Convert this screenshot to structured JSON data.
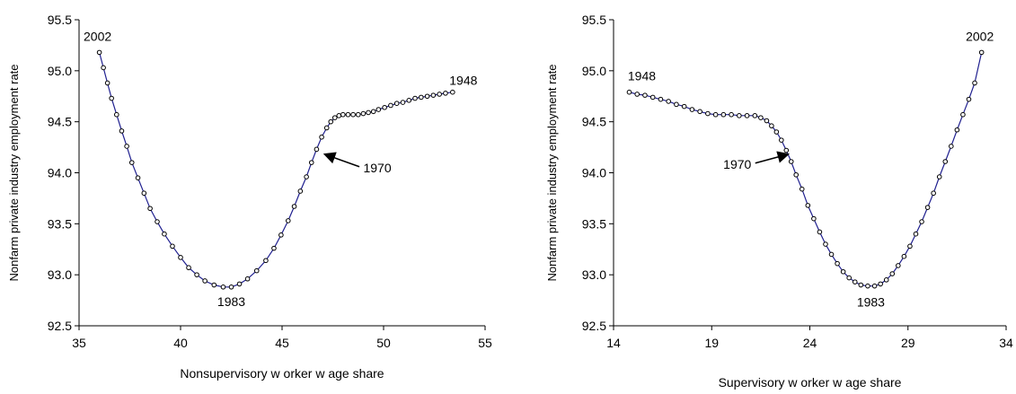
{
  "colors": {
    "line": "#1f1f8f",
    "marker_fill": "#ffffff",
    "marker_stroke": "#000000",
    "axis": "#000000",
    "background": "#ffffff"
  },
  "chart_data": [
    {
      "type": "line",
      "title": "",
      "xlabel": "Nonsupervisory w orker w age share",
      "ylabel": "Nonfarm private industry employment rate",
      "xlim": [
        35,
        55
      ],
      "ylim": [
        92.5,
        95.5
      ],
      "x_ticks": [
        35,
        40,
        45,
        50,
        55
      ],
      "x_tick_labels": [
        "35",
        "40",
        "45",
        "50",
        "55"
      ],
      "y_ticks": [
        92.5,
        93.0,
        93.5,
        94.0,
        94.5,
        95.0,
        95.5
      ],
      "y_tick_labels": [
        "92.5",
        "93.0",
        "93.5",
        "94.0",
        "94.5",
        "95.0",
        "95.5"
      ],
      "grid": false,
      "markers": true,
      "series": [
        {
          "x": [
            36.0,
            36.2,
            36.4,
            36.6,
            36.85,
            37.1,
            37.35,
            37.6,
            37.9,
            38.2,
            38.5,
            38.85,
            39.2,
            39.6,
            40.0,
            40.4,
            40.8,
            41.2,
            41.65,
            42.1,
            42.5,
            42.9,
            43.3,
            43.75,
            44.2,
            44.6,
            44.95,
            45.3,
            45.6,
            45.9,
            46.2,
            46.45,
            46.7,
            46.95,
            47.2,
            47.4,
            47.6,
            47.8,
            48.0,
            48.25,
            48.5,
            48.75,
            49.0,
            49.25,
            49.5,
            49.75,
            50.05,
            50.35,
            50.65,
            50.95,
            51.25,
            51.55,
            51.85,
            52.15,
            52.45,
            52.75,
            53.05,
            53.4
          ],
          "y": [
            95.18,
            95.03,
            94.88,
            94.73,
            94.57,
            94.41,
            94.26,
            94.1,
            93.95,
            93.8,
            93.65,
            93.52,
            93.4,
            93.28,
            93.17,
            93.07,
            93.0,
            92.94,
            92.9,
            92.88,
            92.88,
            92.91,
            92.96,
            93.04,
            93.14,
            93.26,
            93.39,
            93.53,
            93.67,
            93.82,
            93.96,
            94.1,
            94.23,
            94.35,
            94.44,
            94.5,
            94.54,
            94.56,
            94.57,
            94.57,
            94.57,
            94.57,
            94.58,
            94.59,
            94.6,
            94.62,
            94.64,
            94.66,
            94.68,
            94.69,
            94.71,
            94.73,
            94.74,
            94.75,
            94.76,
            94.77,
            94.78,
            94.79
          ]
        }
      ],
      "annotations": [
        {
          "text": "2002",
          "x": 36.0,
          "y": 95.18
        },
        {
          "text": "1983",
          "x": 42.5,
          "y": 92.88
        },
        {
          "text": "1948",
          "x": 53.4,
          "y": 94.79
        },
        {
          "text": "1970",
          "x": 46.95,
          "y": 94.2,
          "arrow": true
        }
      ]
    },
    {
      "type": "line",
      "title": "",
      "xlabel": "Supervisory w orker w age share",
      "ylabel": "Nonfarm private industry employment rate",
      "xlim": [
        14,
        34
      ],
      "ylim": [
        92.5,
        95.5
      ],
      "x_ticks": [
        14,
        19,
        24,
        29,
        34
      ],
      "x_tick_labels": [
        "14",
        "19",
        "24",
        "29",
        "34"
      ],
      "y_ticks": [
        92.5,
        93.0,
        93.5,
        94.0,
        94.5,
        95.0,
        95.5
      ],
      "y_tick_labels": [
        "92.5",
        "93.0",
        "93.5",
        "94.0",
        "94.5",
        "95.0",
        "95.5"
      ],
      "grid": false,
      "markers": true,
      "series": [
        {
          "x": [
            14.8,
            15.2,
            15.6,
            16.0,
            16.4,
            16.8,
            17.2,
            17.6,
            18.0,
            18.4,
            18.8,
            19.2,
            19.6,
            20.0,
            20.4,
            20.8,
            21.2,
            21.5,
            21.8,
            22.05,
            22.3,
            22.55,
            22.8,
            23.05,
            23.3,
            23.6,
            23.9,
            24.2,
            24.5,
            24.8,
            25.1,
            25.4,
            25.7,
            26.0,
            26.3,
            26.6,
            26.95,
            27.3,
            27.6,
            27.9,
            28.2,
            28.5,
            28.8,
            29.1,
            29.4,
            29.7,
            30.0,
            30.3,
            30.6,
            30.9,
            31.2,
            31.5,
            31.8,
            32.1,
            32.4,
            32.75
          ],
          "y": [
            94.79,
            94.77,
            94.76,
            94.74,
            94.72,
            94.7,
            94.67,
            94.65,
            94.62,
            94.6,
            94.58,
            94.57,
            94.57,
            94.57,
            94.56,
            94.56,
            94.56,
            94.54,
            94.51,
            94.46,
            94.4,
            94.32,
            94.22,
            94.11,
            93.98,
            93.84,
            93.68,
            93.55,
            93.42,
            93.3,
            93.2,
            93.11,
            93.03,
            92.97,
            92.93,
            92.9,
            92.89,
            92.89,
            92.91,
            92.95,
            93.01,
            93.09,
            93.18,
            93.28,
            93.4,
            93.52,
            93.66,
            93.8,
            93.96,
            94.11,
            94.26,
            94.42,
            94.57,
            94.72,
            94.88,
            95.18
          ]
        }
      ],
      "annotations": [
        {
          "text": "1948",
          "x": 14.8,
          "y": 94.79
        },
        {
          "text": "1983",
          "x": 27.2,
          "y": 92.89
        },
        {
          "text": "2002",
          "x": 32.75,
          "y": 95.18
        },
        {
          "text": "1970",
          "x": 23.05,
          "y": 94.2,
          "arrow": true
        }
      ]
    }
  ]
}
